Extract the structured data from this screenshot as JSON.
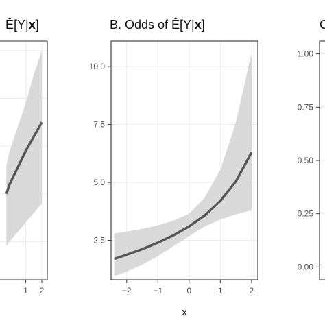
{
  "chart_data": [
    {
      "type": "line",
      "title_prefix": "",
      "title_math": "Ê[Y|x]",
      "xlabel": "",
      "ylabel": "",
      "xlim": [
        -2.5,
        2.2
      ],
      "x_ticks": [
        "1",
        "2"
      ],
      "x_tick_values": [
        1,
        2
      ],
      "grid": true,
      "series": [
        {
          "x": [
            -0.2,
            0,
            0.5,
            1,
            1.5,
            2
          ],
          "y": [
            0.6,
            0.62,
            0.655,
            0.69,
            0.72,
            0.75
          ],
          "lower": [
            0.49,
            0.5,
            0.52,
            0.54,
            0.56,
            0.58
          ],
          "upper": [
            0.66,
            0.69,
            0.74,
            0.79,
            0.85,
            0.9
          ]
        }
      ]
    },
    {
      "type": "line",
      "title_prefix": "B. Odds of ",
      "title_math": "Ê[Y|x]",
      "xlabel": "x",
      "ylabel": "",
      "xlim": [
        -2.5,
        2.2
      ],
      "ylim": [
        0.8,
        11.1
      ],
      "x_ticks": [
        "−2",
        "−1",
        "0",
        "1",
        "2"
      ],
      "x_tick_values": [
        -2,
        -1,
        0,
        1,
        2
      ],
      "y_ticks": [
        "2.5",
        "5.0",
        "7.5",
        "10.0"
      ],
      "y_tick_values": [
        2.5,
        5.0,
        7.5,
        10.0
      ],
      "grid": true,
      "series": [
        {
          "x": [
            -2.4,
            -2,
            -1.5,
            -1,
            -0.5,
            0,
            0.5,
            1,
            1.5,
            2
          ],
          "y": [
            1.7,
            1.88,
            2.12,
            2.4,
            2.72,
            3.1,
            3.58,
            4.2,
            5.05,
            6.3
          ],
          "lower": [
            0.95,
            1.15,
            1.45,
            1.82,
            2.25,
            2.68,
            3.1,
            3.4,
            3.62,
            3.8
          ],
          "upper": [
            2.8,
            2.88,
            3.0,
            3.15,
            3.35,
            3.65,
            4.35,
            5.55,
            7.6,
            10.6
          ]
        }
      ]
    },
    {
      "type": "line",
      "title_prefix": "C",
      "title_math": "",
      "xlabel": "",
      "ylabel": "",
      "ylim": [
        -0.06,
        1.06
      ],
      "y_ticks": [
        "0.00",
        "0.25",
        "0.50",
        "0.75",
        "1.00"
      ],
      "y_tick_values": [
        0,
        0.25,
        0.5,
        0.75,
        1.0
      ],
      "grid": true,
      "series": []
    }
  ],
  "colors": {
    "line": "#555555",
    "ribbon": "#d9d9d9",
    "grid": "#ebebeb",
    "frame": "#333333",
    "text": "#111111",
    "tick_text": "#4d4d4d"
  }
}
